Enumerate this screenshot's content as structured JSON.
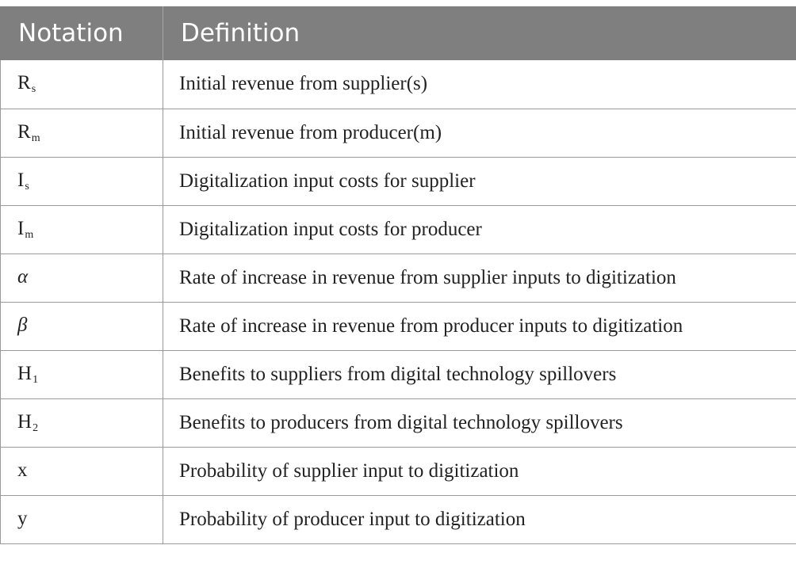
{
  "table": {
    "headers": [
      "Notation",
      "Definition"
    ],
    "rows": [
      {
        "symbol": "R",
        "sub": "s",
        "definition": "Initial revenue from supplier(s)"
      },
      {
        "symbol": "R",
        "sub": "m",
        "definition": "Initial revenue from producer(m)"
      },
      {
        "symbol": "I",
        "sub": "s",
        "definition": "Digitalization input costs for supplier"
      },
      {
        "symbol": "I",
        "sub": "m",
        "definition": "Digitalization input costs for producer"
      },
      {
        "symbol": "α",
        "sub": "",
        "definition": "Rate of increase in revenue from supplier inputs to digitization"
      },
      {
        "symbol": "β",
        "sub": "",
        "definition": "Rate of increase in revenue from producer inputs to digitization"
      },
      {
        "symbol": "H",
        "sub": "1",
        "definition": "Benefits to suppliers from digital technology spillovers"
      },
      {
        "symbol": "H",
        "sub": "2",
        "definition": "Benefits to producers from digital technology spillovers"
      },
      {
        "symbol": "x",
        "sub": "",
        "definition": "Probability of supplier input to digitization"
      },
      {
        "symbol": "y",
        "sub": "",
        "definition": "Probability of producer input to digitization"
      }
    ]
  }
}
